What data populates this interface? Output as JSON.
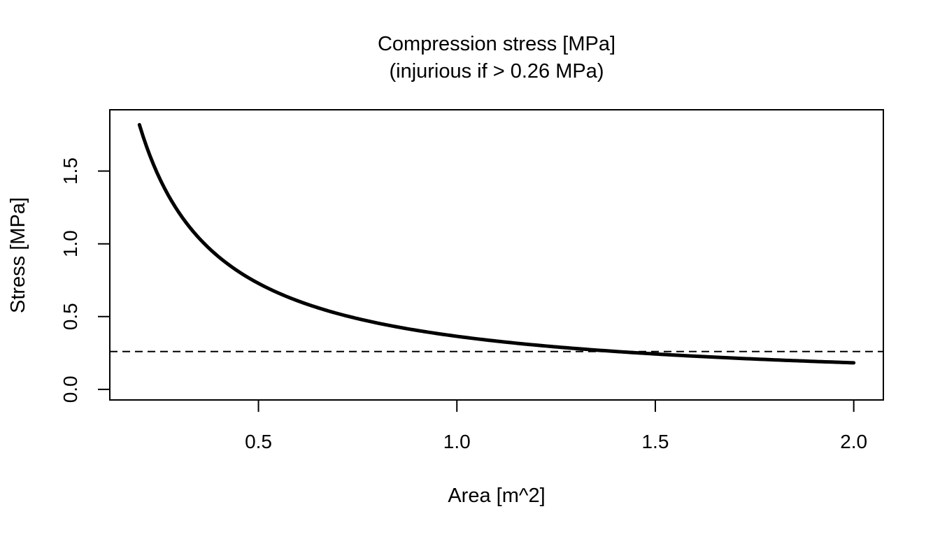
{
  "chart_data": {
    "type": "line",
    "title": "Compression stress [MPa]",
    "subtitle": "(injurious if > 0.26 MPa)",
    "xlabel": "Area [m^2]",
    "ylabel": "Stress [MPa]",
    "xlim": [
      0.1254,
      2.0746
    ],
    "ylim": [
      -0.0729,
      1.9212
    ],
    "x_ticks": [
      "0.5",
      "1.0",
      "1.5",
      "2.0"
    ],
    "y_ticks": [
      "0.0",
      "0.5",
      "1.0",
      "1.5"
    ],
    "grid": false,
    "legend": "none",
    "series": [
      {
        "function": "stress = 0.3645 / area^0.9986",
        "x_range": [
          0.2,
          2.0
        ],
        "samples": 200,
        "x": [
          0.2,
          0.3,
          0.4,
          0.5,
          0.75,
          1.0,
          1.25,
          1.5,
          1.75,
          2.0
        ],
        "y": [
          1.83,
          1.22,
          0.915,
          0.73,
          0.487,
          0.365,
          0.292,
          0.244,
          0.209,
          0.183
        ],
        "color": "#000000",
        "line_style": "solid"
      }
    ],
    "reference_line": {
      "y": 0.26,
      "color": "#000000",
      "line_style": "dashed"
    }
  }
}
